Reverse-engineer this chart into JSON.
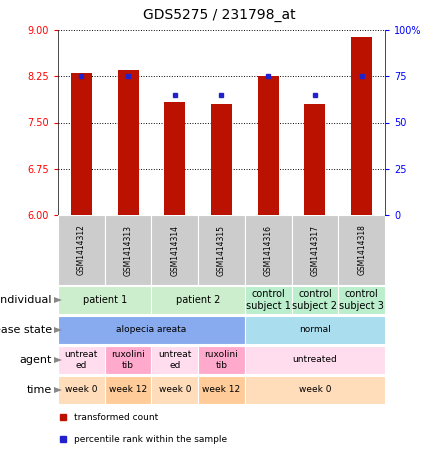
{
  "title": "GDS5275 / 231798_at",
  "samples": [
    "GSM1414312",
    "GSM1414313",
    "GSM1414314",
    "GSM1414315",
    "GSM1414316",
    "GSM1414317",
    "GSM1414318"
  ],
  "bar_values": [
    8.3,
    8.35,
    7.83,
    7.8,
    8.25,
    7.8,
    8.88
  ],
  "dot_values": [
    75,
    75,
    65,
    65,
    75,
    65,
    75
  ],
  "ylim_left": [
    6,
    9
  ],
  "ylim_right": [
    0,
    100
  ],
  "yticks_left": [
    6,
    6.75,
    7.5,
    8.25,
    9
  ],
  "yticks_right": [
    0,
    25,
    50,
    75,
    100
  ],
  "bar_color": "#bb1100",
  "dot_color": "#2222cc",
  "bar_width": 0.45,
  "annotation_rows": [
    {
      "label": "individual",
      "cells": [
        {
          "text": "patient 1",
          "span": [
            0,
            1
          ],
          "color": "#cceecc"
        },
        {
          "text": "patient 2",
          "span": [
            2,
            3
          ],
          "color": "#cceecc"
        },
        {
          "text": "control\nsubject 1",
          "span": [
            4,
            4
          ],
          "color": "#bbeecc"
        },
        {
          "text": "control\nsubject 2",
          "span": [
            5,
            5
          ],
          "color": "#bbeecc"
        },
        {
          "text": "control\nsubject 3",
          "span": [
            6,
            6
          ],
          "color": "#bbeecc"
        }
      ]
    },
    {
      "label": "disease state",
      "cells": [
        {
          "text": "alopecia areata",
          "span": [
            0,
            3
          ],
          "color": "#88aaee"
        },
        {
          "text": "normal",
          "span": [
            4,
            6
          ],
          "color": "#aaddee"
        }
      ]
    },
    {
      "label": "agent",
      "cells": [
        {
          "text": "untreat\ned",
          "span": [
            0,
            0
          ],
          "color": "#ffddee"
        },
        {
          "text": "ruxolini\ntib",
          "span": [
            1,
            1
          ],
          "color": "#ffaacc"
        },
        {
          "text": "untreat\ned",
          "span": [
            2,
            2
          ],
          "color": "#ffddee"
        },
        {
          "text": "ruxolini\ntib",
          "span": [
            3,
            3
          ],
          "color": "#ffaacc"
        },
        {
          "text": "untreated",
          "span": [
            4,
            6
          ],
          "color": "#ffddee"
        }
      ]
    },
    {
      "label": "time",
      "cells": [
        {
          "text": "week 0",
          "span": [
            0,
            0
          ],
          "color": "#ffddbb"
        },
        {
          "text": "week 12",
          "span": [
            1,
            1
          ],
          "color": "#ffcc99"
        },
        {
          "text": "week 0",
          "span": [
            2,
            2
          ],
          "color": "#ffddbb"
        },
        {
          "text": "week 12",
          "span": [
            3,
            3
          ],
          "color": "#ffcc99"
        },
        {
          "text": "week 0",
          "span": [
            4,
            6
          ],
          "color": "#ffddbb"
        }
      ]
    }
  ],
  "legend_items": [
    {
      "label": "transformed count",
      "color": "#bb1100"
    },
    {
      "label": "percentile rank within the sample",
      "color": "#2222cc"
    }
  ],
  "sample_label_color": "#cccccc",
  "tick_fontsize": 7,
  "title_fontsize": 10,
  "annot_fontsize": 7,
  "label_fontsize": 8
}
